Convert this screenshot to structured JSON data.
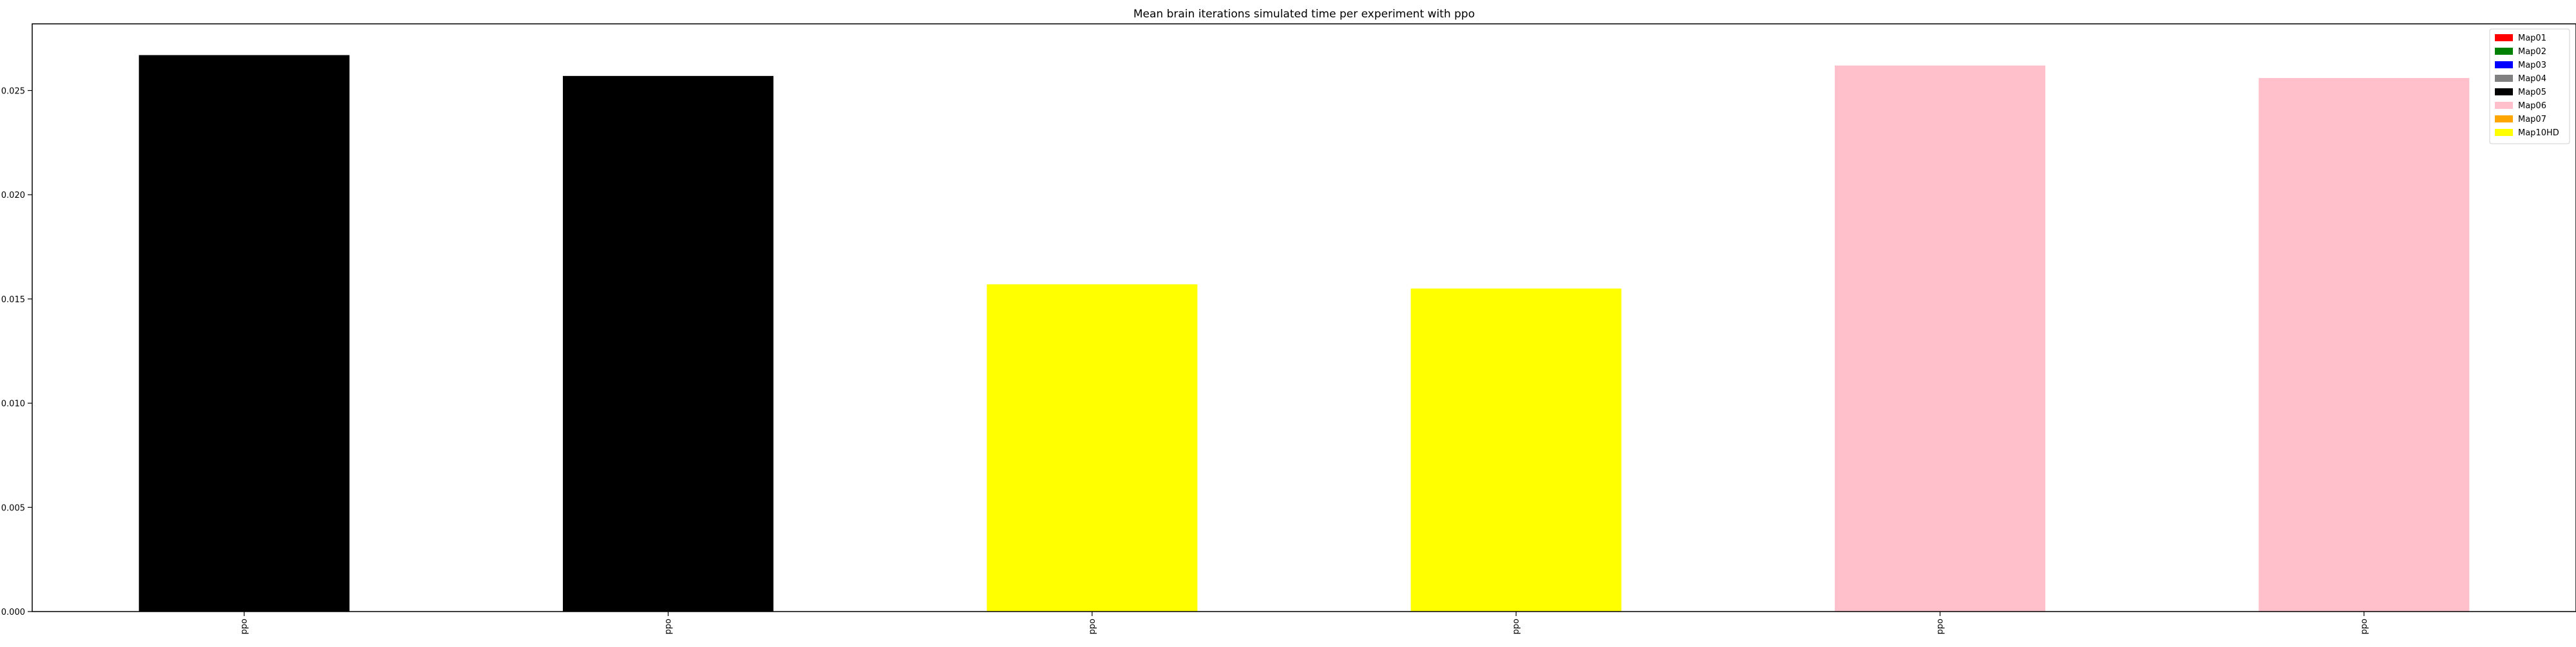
{
  "chart_data": {
    "type": "bar",
    "title": "Mean brain iterations simulated time per experiment with ppo",
    "xlabel": "",
    "ylabel": "",
    "categories": [
      "ppo",
      "ppo",
      "ppo",
      "ppo",
      "ppo",
      "ppo"
    ],
    "values": [
      0.0267,
      0.0257,
      0.0157,
      0.0155,
      0.0262,
      0.0256
    ],
    "bar_series": [
      "Map05",
      "Map05",
      "Map10HD",
      "Map10HD",
      "Map06",
      "Map06"
    ],
    "ylim": [
      0,
      0.0282
    ],
    "yticks": [
      "0.000",
      "0.005",
      "0.010",
      "0.015",
      "0.020",
      "0.025"
    ],
    "ytick_values": [
      0,
      0.005,
      0.01,
      0.015,
      0.02,
      0.025
    ],
    "grid": false,
    "legend_position": "top-right",
    "legend": [
      {
        "name": "Map01",
        "color": "#ff0000"
      },
      {
        "name": "Map02",
        "color": "#008000"
      },
      {
        "name": "Map03",
        "color": "#0000ff"
      },
      {
        "name": "Map04",
        "color": "#808080"
      },
      {
        "name": "Map05",
        "color": "#000000"
      },
      {
        "name": "Map06",
        "color": "#ffc0cb"
      },
      {
        "name": "Map07",
        "color": "#ffa500"
      },
      {
        "name": "Map10HD",
        "color": "#ffff00"
      }
    ]
  }
}
